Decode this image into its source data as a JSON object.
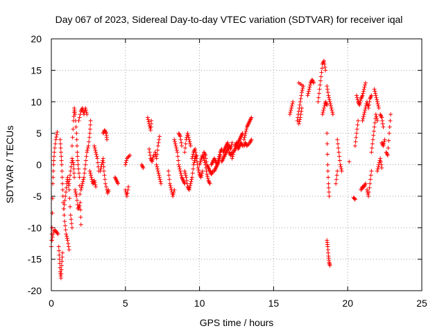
{
  "chart_data": {
    "type": "scatter",
    "title": "Day 067 of 2023, Sidereal Day-to-day VTEC variation (SDTVAR) for receiver iqal",
    "xlabel": "GPS time / hours",
    "ylabel": "SDTVAR / TECUs",
    "xlim": [
      0,
      25
    ],
    "ylim": [
      -20,
      20
    ],
    "xticks": [
      0,
      5,
      10,
      15,
      20,
      25
    ],
    "yticks": [
      -20,
      -15,
      -10,
      -5,
      0,
      5,
      10,
      15,
      20
    ],
    "xtick_labels": [
      "0",
      "5",
      "10",
      "15",
      "20",
      "25"
    ],
    "ytick_labels": [
      "-20",
      "-15",
      "-10",
      "-5",
      "0",
      "5",
      "10",
      "15",
      "20"
    ],
    "grid": true,
    "marker": "+",
    "color": "#ff0000",
    "segments": [
      [
        [
          0.0,
          -13
        ],
        [
          0.05,
          -10
        ],
        [
          0.1,
          -3
        ],
        [
          0.15,
          0
        ],
        [
          0.2,
          2
        ],
        [
          0.3,
          4
        ],
        [
          0.4,
          5.2
        ]
      ],
      [
        [
          0.05,
          -12
        ],
        [
          0.15,
          -10.5
        ],
        [
          0.3,
          -10.5
        ],
        [
          0.45,
          -11
        ]
      ],
      [
        [
          0.5,
          -13
        ],
        [
          0.55,
          -15
        ],
        [
          0.6,
          -17
        ],
        [
          0.65,
          -18
        ],
        [
          0.7,
          -16
        ],
        [
          0.75,
          -14
        ]
      ],
      [
        [
          0.6,
          4
        ],
        [
          0.65,
          2
        ],
        [
          0.7,
          0
        ],
        [
          0.75,
          -3
        ],
        [
          0.8,
          -6
        ],
        [
          0.9,
          -9
        ],
        [
          1.0,
          -11
        ],
        [
          1.1,
          -12
        ],
        [
          1.2,
          -13.5
        ]
      ],
      [
        [
          0.85,
          -7
        ],
        [
          0.95,
          -5
        ],
        [
          1.05,
          -3
        ],
        [
          1.1,
          -2
        ],
        [
          1.2,
          -4
        ],
        [
          1.3,
          -8
        ],
        [
          1.4,
          -10
        ]
      ],
      [
        [
          1.2,
          -3
        ],
        [
          1.3,
          -1
        ],
        [
          1.4,
          1
        ],
        [
          1.5,
          0
        ],
        [
          1.55,
          -2
        ]
      ],
      [
        [
          1.4,
          3
        ],
        [
          1.5,
          7
        ],
        [
          1.55,
          9
        ],
        [
          1.6,
          8
        ],
        [
          1.7,
          5
        ],
        [
          1.75,
          2
        ],
        [
          1.8,
          0
        ],
        [
          1.9,
          -2
        ],
        [
          1.95,
          -6
        ],
        [
          2.0,
          -9.5
        ]
      ],
      [
        [
          1.6,
          -4
        ],
        [
          1.7,
          -5
        ],
        [
          1.8,
          -7
        ],
        [
          1.9,
          -6.5
        ]
      ],
      [
        [
          1.85,
          7
        ],
        [
          2.0,
          8.5
        ],
        [
          2.1,
          9
        ],
        [
          2.2,
          8
        ],
        [
          2.3,
          9
        ],
        [
          2.4,
          8
        ]
      ],
      [
        [
          2.0,
          -4
        ],
        [
          2.1,
          -3
        ],
        [
          2.2,
          -2
        ],
        [
          2.3,
          0
        ],
        [
          2.4,
          2
        ],
        [
          2.5,
          3
        ],
        [
          2.6,
          5
        ],
        [
          2.65,
          7
        ]
      ],
      [
        [
          2.6,
          -1
        ],
        [
          2.7,
          -2
        ],
        [
          2.8,
          -3
        ],
        [
          2.9,
          -2.5
        ],
        [
          3.0,
          -3.5
        ]
      ],
      [
        [
          2.9,
          3
        ],
        [
          3.0,
          2
        ],
        [
          3.1,
          1
        ],
        [
          3.2,
          -1
        ]
      ],
      [
        [
          3.3,
          -1
        ],
        [
          3.4,
          0
        ],
        [
          3.5,
          1
        ],
        [
          3.55,
          -1
        ],
        [
          3.65,
          -3
        ],
        [
          3.8,
          -4.5
        ],
        [
          3.85,
          -4
        ]
      ],
      [
        [
          3.5,
          5
        ],
        [
          3.6,
          5.5
        ],
        [
          3.7,
          5
        ],
        [
          3.75,
          4
        ]
      ],
      [
        [
          4.3,
          -2
        ],
        [
          4.4,
          -2.5
        ],
        [
          4.5,
          -3
        ]
      ],
      [
        [
          5.0,
          -4
        ],
        [
          5.1,
          -5
        ],
        [
          5.2,
          -3.5
        ]
      ],
      [
        [
          5.0,
          0
        ],
        [
          5.1,
          1
        ],
        [
          5.3,
          1.5
        ]
      ],
      [
        [
          6.1,
          0
        ],
        [
          6.2,
          -0.5
        ]
      ],
      [
        [
          6.5,
          7.5
        ],
        [
          6.6,
          6.5
        ],
        [
          6.7,
          5.5
        ],
        [
          6.75,
          7
        ]
      ],
      [
        [
          6.6,
          2.5
        ],
        [
          6.7,
          1
        ],
        [
          6.8,
          0.5
        ],
        [
          6.9,
          1.5
        ]
      ],
      [
        [
          7.0,
          2
        ],
        [
          7.1,
          1
        ],
        [
          7.2,
          3
        ],
        [
          7.3,
          4.5
        ]
      ],
      [
        [
          7.1,
          0
        ],
        [
          7.2,
          -1
        ],
        [
          7.3,
          -2
        ],
        [
          7.4,
          -3
        ]
      ],
      [
        [
          7.9,
          -1
        ],
        [
          8.0,
          -3
        ],
        [
          8.1,
          -4
        ],
        [
          8.2,
          -5
        ],
        [
          8.3,
          -4
        ]
      ],
      [
        [
          8.3,
          4
        ],
        [
          8.4,
          3
        ],
        [
          8.5,
          2
        ],
        [
          8.6,
          0
        ],
        [
          8.7,
          -1
        ],
        [
          8.8,
          -2
        ],
        [
          8.9,
          -2.5
        ],
        [
          9.0,
          -3
        ]
      ],
      [
        [
          8.6,
          5
        ],
        [
          8.7,
          4.5
        ],
        [
          8.8,
          3
        ]
      ],
      [
        [
          9.0,
          -1
        ],
        [
          9.1,
          -2
        ],
        [
          9.2,
          -3.5
        ],
        [
          9.3,
          -4
        ],
        [
          9.4,
          -3
        ],
        [
          9.5,
          -2
        ],
        [
          9.6,
          0
        ],
        [
          9.7,
          1
        ],
        [
          9.8,
          1.5
        ]
      ],
      [
        [
          9.0,
          2
        ],
        [
          9.1,
          4
        ],
        [
          9.2,
          5
        ],
        [
          9.3,
          4
        ],
        [
          9.4,
          3
        ]
      ],
      [
        [
          9.5,
          1
        ],
        [
          9.6,
          2
        ],
        [
          9.7,
          2.5
        ],
        [
          9.8,
          1
        ],
        [
          9.9,
          -0.5
        ],
        [
          10.0,
          -1.5
        ],
        [
          10.1,
          -2
        ],
        [
          10.2,
          -1
        ]
      ],
      [
        [
          10.0,
          0
        ],
        [
          10.1,
          0.8
        ],
        [
          10.2,
          1.5
        ],
        [
          10.3,
          1
        ],
        [
          10.4,
          0
        ],
        [
          10.5,
          -1.5
        ],
        [
          10.6,
          -2.5
        ],
        [
          10.7,
          -3
        ]
      ],
      [
        [
          10.3,
          2
        ],
        [
          10.4,
          1.5
        ],
        [
          10.5,
          0
        ],
        [
          10.6,
          -0.5
        ],
        [
          10.7,
          -1
        ],
        [
          10.8,
          -1.5
        ],
        [
          10.9,
          -1
        ]
      ],
      [
        [
          10.8,
          0
        ],
        [
          10.9,
          0.5
        ],
        [
          11.0,
          1
        ],
        [
          11.1,
          0.5
        ],
        [
          11.2,
          0
        ],
        [
          11.3,
          0.5
        ],
        [
          11.4,
          1.5
        ]
      ],
      [
        [
          11.0,
          -1
        ],
        [
          11.1,
          -0.5
        ],
        [
          11.2,
          0
        ],
        [
          11.3,
          1
        ],
        [
          11.4,
          2
        ],
        [
          11.5,
          2.5
        ]
      ],
      [
        [
          11.5,
          0.5
        ],
        [
          11.6,
          1
        ],
        [
          11.7,
          1.5
        ],
        [
          11.8,
          2
        ],
        [
          11.9,
          2.5
        ],
        [
          12.0,
          3
        ],
        [
          12.1,
          2.5
        ],
        [
          12.2,
          3.5
        ]
      ],
      [
        [
          11.6,
          2
        ],
        [
          11.7,
          2.5
        ],
        [
          11.8,
          3
        ],
        [
          11.9,
          3.5
        ],
        [
          12.0,
          2
        ],
        [
          12.1,
          1.5
        ],
        [
          12.2,
          2
        ]
      ],
      [
        [
          12.2,
          1
        ],
        [
          12.3,
          2
        ],
        [
          12.4,
          2.5
        ],
        [
          12.5,
          3
        ],
        [
          12.6,
          3.5
        ],
        [
          12.7,
          4
        ],
        [
          12.8,
          4.5
        ],
        [
          12.9,
          5
        ]
      ],
      [
        [
          12.4,
          3
        ],
        [
          12.5,
          3.5
        ],
        [
          12.6,
          2.5
        ],
        [
          12.7,
          3
        ],
        [
          12.8,
          3.5
        ],
        [
          12.9,
          3
        ]
      ],
      [
        [
          13.0,
          4
        ],
        [
          13.1,
          5
        ],
        [
          13.2,
          6
        ],
        [
          13.3,
          6.5
        ],
        [
          13.4,
          7
        ],
        [
          13.5,
          7.5
        ]
      ],
      [
        [
          13.0,
          3
        ],
        [
          13.1,
          3.5
        ],
        [
          13.2,
          3
        ],
        [
          13.4,
          3.5
        ],
        [
          13.5,
          4
        ]
      ],
      [
        [
          16.1,
          8
        ],
        [
          16.2,
          9
        ],
        [
          16.3,
          10
        ]
      ],
      [
        [
          16.6,
          7
        ],
        [
          16.7,
          8.5
        ],
        [
          16.8,
          10
        ],
        [
          16.9,
          11.5
        ],
        [
          17.0,
          12.5
        ],
        [
          16.7,
          13
        ]
      ],
      [
        [
          16.7,
          6.5
        ],
        [
          16.8,
          7.5
        ],
        [
          16.9,
          9
        ]
      ],
      [
        [
          17.3,
          11
        ],
        [
          17.4,
          12
        ],
        [
          17.5,
          13
        ],
        [
          17.6,
          13.5
        ],
        [
          17.7,
          13
        ]
      ],
      [
        [
          18.0,
          10
        ],
        [
          18.1,
          12
        ],
        [
          18.2,
          14
        ],
        [
          18.3,
          16
        ],
        [
          18.4,
          16.5
        ],
        [
          18.5,
          15
        ]
      ],
      [
        [
          18.3,
          8
        ],
        [
          18.4,
          9
        ],
        [
          18.5,
          10
        ],
        [
          18.6,
          9.5
        ]
      ],
      [
        [
          18.6,
          12.5
        ],
        [
          18.7,
          11
        ],
        [
          18.8,
          10
        ],
        [
          18.9,
          9
        ],
        [
          19.0,
          8
        ]
      ],
      [
        [
          18.6,
          5
        ],
        [
          18.65,
          0
        ],
        [
          18.7,
          -3
        ],
        [
          18.75,
          -5
        ]
      ],
      [
        [
          18.6,
          -12
        ],
        [
          18.65,
          -13
        ],
        [
          18.7,
          -14.5
        ],
        [
          18.75,
          -15.5
        ],
        [
          18.8,
          -16
        ]
      ],
      [
        [
          19.3,
          4
        ],
        [
          19.4,
          2
        ],
        [
          19.5,
          0
        ],
        [
          19.6,
          -1
        ]
      ],
      [
        [
          19.2,
          -3
        ],
        [
          19.3,
          -1
        ]
      ],
      [
        [
          20.1,
          0.5
        ]
      ],
      [
        [
          20.4,
          -5.2
        ],
        [
          20.5,
          -5.5
        ]
      ],
      [
        [
          20.5,
          3
        ],
        [
          20.6,
          5
        ],
        [
          20.7,
          7
        ]
      ],
      [
        [
          20.6,
          11
        ],
        [
          20.7,
          10
        ],
        [
          20.8,
          9.5
        ],
        [
          20.9,
          10.5
        ],
        [
          21.0,
          11
        ],
        [
          21.1,
          12
        ],
        [
          21.2,
          13
        ]
      ],
      [
        [
          20.9,
          -4
        ],
        [
          21.0,
          -3.5
        ],
        [
          21.1,
          -3.5
        ],
        [
          21.2,
          -3
        ]
      ],
      [
        [
          21.0,
          7
        ],
        [
          21.1,
          8
        ],
        [
          21.2,
          9
        ],
        [
          21.3,
          10
        ],
        [
          21.4,
          9
        ],
        [
          21.5,
          10.5
        ],
        [
          21.6,
          11
        ]
      ],
      [
        [
          21.3,
          -4
        ],
        [
          21.4,
          -5
        ],
        [
          21.5,
          -3
        ],
        [
          21.6,
          -1
        ]
      ],
      [
        [
          21.6,
          2
        ],
        [
          21.7,
          4
        ],
        [
          21.8,
          6
        ],
        [
          21.9,
          8
        ],
        [
          22.0,
          7
        ]
      ],
      [
        [
          21.8,
          12
        ],
        [
          21.9,
          11
        ],
        [
          22.0,
          10
        ],
        [
          22.1,
          9
        ]
      ],
      [
        [
          22.0,
          -1
        ],
        [
          22.1,
          0
        ],
        [
          22.2,
          1
        ],
        [
          22.3,
          -0.5
        ]
      ],
      [
        [
          22.2,
          8
        ],
        [
          22.3,
          7.5
        ],
        [
          22.4,
          6
        ]
      ],
      [
        [
          22.3,
          3.5
        ],
        [
          22.4,
          3
        ],
        [
          22.5,
          4
        ]
      ],
      [
        [
          22.6,
          2
        ],
        [
          22.7,
          1.5
        ],
        [
          22.8,
          5
        ],
        [
          22.9,
          8
        ]
      ]
    ]
  }
}
